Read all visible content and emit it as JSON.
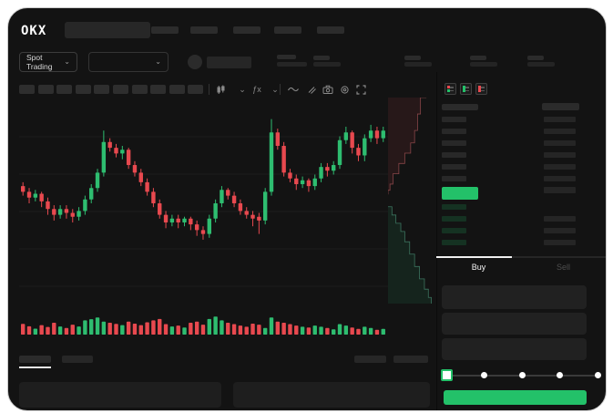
{
  "colors": {
    "green": "#23c169",
    "red": "#e8494f",
    "candle_up": "#2ebd70",
    "candle_down": "#e8494f",
    "bid_row_tint": "rgba(35,193,105,0.18)",
    "panel_bg": "#131313"
  },
  "header": {
    "logo": "OKX",
    "nav_placeholder_count": 5
  },
  "subheader": {
    "market_selector_label": "Spot Trading",
    "chevron_glyph": "⌄"
  },
  "toolbar": {
    "timeframe_placeholder_count": 10,
    "icons": [
      "chart-type-icon",
      "caret-down-icon",
      "indicator-fx-icon",
      "caret-down-icon",
      "wave-icon",
      "draw-pencil-icon",
      "camera-icon",
      "settings-icon",
      "fullscreen-icon"
    ],
    "fx_glyph": "ƒx"
  },
  "orderbook": {
    "view_modes": [
      "combined",
      "bids",
      "asks"
    ],
    "ask_rows": 6,
    "ask_right_bars": [
      true,
      true,
      true,
      true,
      true,
      true
    ],
    "bid_rows": 4,
    "bid_right_bars": [
      false,
      true,
      true,
      true
    ],
    "last_price_highlight": "#23c169"
  },
  "trade_panel": {
    "tabs": [
      {
        "label": "Buy",
        "active": true
      },
      {
        "label": "Sell",
        "active": false
      }
    ],
    "field_count": 3,
    "slider_steps": 5
  },
  "chart_data": {
    "type": "candlestick",
    "title": "",
    "xlabel": "",
    "ylabel": "",
    "ylim": [
      0,
      100
    ],
    "grid_lines": 5,
    "legend": "none",
    "candles_ohlc": [
      [
        59,
        61,
        54,
        56
      ],
      [
        56,
        58,
        50,
        53
      ],
      [
        53,
        57,
        51,
        55
      ],
      [
        55,
        56,
        48,
        51
      ],
      [
        51,
        53,
        44,
        47
      ],
      [
        47,
        49,
        41,
        44
      ],
      [
        44,
        49,
        42,
        47
      ],
      [
        47,
        49,
        42,
        45
      ],
      [
        45,
        47,
        40,
        43
      ],
      [
        43,
        48,
        41,
        46
      ],
      [
        46,
        54,
        44,
        52
      ],
      [
        52,
        60,
        50,
        58
      ],
      [
        58,
        68,
        56,
        66
      ],
      [
        66,
        88,
        64,
        82
      ],
      [
        82,
        84,
        77,
        79
      ],
      [
        79,
        81,
        74,
        76
      ],
      [
        76,
        80,
        73,
        78
      ],
      [
        78,
        79,
        68,
        70
      ],
      [
        70,
        72,
        64,
        66
      ],
      [
        66,
        68,
        59,
        61
      ],
      [
        61,
        63,
        54,
        56
      ],
      [
        56,
        58,
        48,
        50
      ],
      [
        50,
        52,
        42,
        44
      ],
      [
        44,
        46,
        37,
        40
      ],
      [
        40,
        44,
        38,
        42
      ],
      [
        42,
        44,
        37,
        40
      ],
      [
        40,
        43,
        38,
        42
      ],
      [
        42,
        43,
        36,
        39
      ],
      [
        39,
        41,
        33,
        36
      ],
      [
        36,
        38,
        31,
        34
      ],
      [
        34,
        44,
        32,
        42
      ],
      [
        42,
        52,
        40,
        50
      ],
      [
        50,
        59,
        48,
        57
      ],
      [
        57,
        58,
        52,
        54
      ],
      [
        54,
        56,
        48,
        50
      ],
      [
        50,
        52,
        44,
        46
      ],
      [
        46,
        48,
        42,
        44
      ],
      [
        44,
        46,
        38,
        42
      ],
      [
        43,
        45,
        34,
        41
      ],
      [
        41,
        58,
        39,
        56
      ],
      [
        56,
        94,
        54,
        87
      ],
      [
        87,
        89,
        78,
        80
      ],
      [
        80,
        82,
        64,
        66
      ],
      [
        66,
        68,
        61,
        63
      ],
      [
        63,
        65,
        57,
        60
      ],
      [
        60,
        64,
        58,
        62
      ],
      [
        62,
        63,
        56,
        59
      ],
      [
        59,
        65,
        57,
        63
      ],
      [
        63,
        71,
        61,
        69
      ],
      [
        69,
        71,
        64,
        67
      ],
      [
        67,
        72,
        65,
        70
      ],
      [
        70,
        85,
        68,
        83
      ],
      [
        83,
        90,
        81,
        87
      ],
      [
        87,
        88,
        76,
        79
      ],
      [
        79,
        81,
        72,
        75
      ],
      [
        75,
        86,
        72,
        84
      ],
      [
        84,
        91,
        82,
        88
      ],
      [
        88,
        90,
        81,
        84
      ],
      [
        84,
        90,
        82,
        88
      ]
    ],
    "volumes": [
      45,
      35,
      25,
      40,
      32,
      50,
      34,
      28,
      42,
      34,
      60,
      65,
      72,
      55,
      50,
      45,
      40,
      55,
      46,
      40,
      52,
      60,
      66,
      44,
      34,
      38,
      30,
      50,
      55,
      42,
      66,
      76,
      60,
      50,
      44,
      38,
      33,
      46,
      42,
      28,
      72,
      55,
      50,
      44,
      38,
      33,
      30,
      38,
      33,
      28,
      22,
      44,
      38,
      30,
      24,
      33,
      28,
      20,
      24
    ],
    "depth": {
      "asks_boundary": [
        [
          78,
          0
        ],
        [
          66,
          8
        ],
        [
          60,
          16
        ],
        [
          54,
          22
        ],
        [
          46,
          27
        ],
        [
          34,
          32
        ],
        [
          22,
          37
        ],
        [
          10,
          42
        ],
        [
          4,
          45
        ],
        [
          0,
          47
        ]
      ],
      "bids_boundary": [
        [
          0,
          53
        ],
        [
          8,
          57
        ],
        [
          16,
          61
        ],
        [
          26,
          65
        ],
        [
          34,
          70
        ],
        [
          44,
          76
        ],
        [
          54,
          82
        ],
        [
          64,
          88
        ],
        [
          74,
          93
        ],
        [
          82,
          97
        ],
        [
          88,
          100
        ]
      ]
    }
  }
}
